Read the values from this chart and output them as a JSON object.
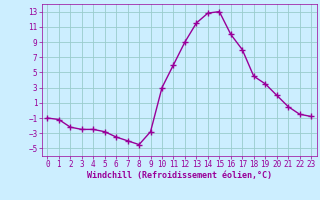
{
  "x": [
    0,
    1,
    2,
    3,
    4,
    5,
    6,
    7,
    8,
    9,
    10,
    11,
    12,
    13,
    14,
    15,
    16,
    17,
    18,
    19,
    20,
    21,
    22,
    23
  ],
  "y": [
    -1,
    -1.2,
    -2.2,
    -2.5,
    -2.5,
    -2.8,
    -3.5,
    -4.0,
    -4.5,
    -2.8,
    3.0,
    6.0,
    9.0,
    11.5,
    12.8,
    13.0,
    10.0,
    8.0,
    4.5,
    3.5,
    2.0,
    0.5,
    -0.5,
    -0.8
  ],
  "line_color": "#990099",
  "marker": "+",
  "markersize": 4,
  "linewidth": 1.0,
  "bg_color": "#cceeff",
  "grid_color": "#99cccc",
  "xlabel": "Windchill (Refroidissement éolien,°C)",
  "xlabel_fontsize": 6.0,
  "tick_fontsize": 5.5,
  "ylim": [
    -6,
    14
  ],
  "yticks": [
    -5,
    -3,
    -1,
    1,
    3,
    5,
    7,
    9,
    11,
    13
  ],
  "xlim": [
    -0.5,
    23.5
  ],
  "xticks": [
    0,
    1,
    2,
    3,
    4,
    5,
    6,
    7,
    8,
    9,
    10,
    11,
    12,
    13,
    14,
    15,
    16,
    17,
    18,
    19,
    20,
    21,
    22,
    23
  ]
}
